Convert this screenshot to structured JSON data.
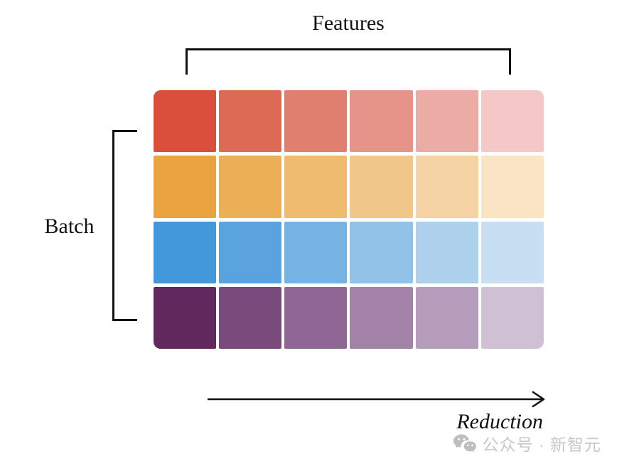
{
  "labels": {
    "features": "Features",
    "batch": "Batch",
    "reduction": "Reduction"
  },
  "grid": {
    "rows": 4,
    "cols": 6,
    "row_names": [
      "red",
      "orange",
      "blue",
      "purple"
    ],
    "colors": [
      [
        "#d94f3b",
        "#dc6a55",
        "#e07e6f",
        "#e6938a",
        "#ecaba5",
        "#f4c8c6"
      ],
      [
        "#e9a43f",
        "#ebaf55",
        "#efbc6f",
        "#f1c689",
        "#f5d3a4",
        "#f9e4c4"
      ],
      [
        "#4397db",
        "#5ba3de",
        "#77b3e2",
        "#92c2e7",
        "#add1ec",
        "#c8dff3"
      ],
      [
        "#61295e",
        "#7a4a7c",
        "#8f6694",
        "#a382a8",
        "#b59dbb",
        "#cfc0d6"
      ]
    ]
  },
  "annotation": {
    "line_color": "#111111"
  },
  "watermark": {
    "text": "公众号 · 新智元",
    "color": "#c6c8ca",
    "icon": "wechat-icon"
  }
}
